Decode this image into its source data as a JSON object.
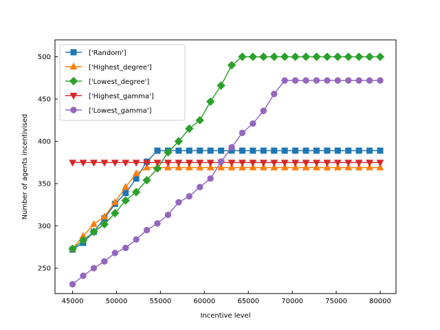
{
  "chart_data": {
    "type": "line",
    "xlabel": "Incentive level",
    "ylabel": "Number of agents incentivised",
    "xlim": [
      43000,
      81800
    ],
    "ylim": [
      220,
      520
    ],
    "xticks": [
      45000,
      50000,
      55000,
      60000,
      65000,
      70000,
      75000,
      80000
    ],
    "yticks": [
      250,
      300,
      350,
      400,
      450,
      500
    ],
    "grid": false,
    "legend_position": "top-left",
    "x": [
      45000,
      46207,
      47414,
      48621,
      49828,
      51034,
      52241,
      53448,
      54655,
      55862,
      57069,
      58276,
      59483,
      60690,
      61897,
      63103,
      64310,
      65517,
      66724,
      67931,
      69138,
      70345,
      71552,
      72759,
      73966,
      75172,
      76379,
      77586,
      78793,
      80000
    ],
    "series": [
      {
        "name": "['Random']",
        "color": "#1f77b4",
        "marker": "square",
        "values": [
          272,
          280,
          293,
          309,
          326,
          339,
          356,
          376,
          389,
          389,
          389,
          389,
          389,
          389,
          389,
          389,
          389,
          389,
          389,
          389,
          389,
          389,
          389,
          389,
          389,
          389,
          389,
          389,
          389,
          389
        ]
      },
      {
        "name": "['Highest_degree']",
        "color": "#ff7f0e",
        "marker": "triangle-up",
        "values": [
          273,
          288,
          302,
          311,
          328,
          346,
          362,
          369,
          369,
          369,
          369,
          369,
          369,
          369,
          369,
          369,
          369,
          369,
          369,
          369,
          369,
          369,
          369,
          369,
          369,
          369,
          369,
          369,
          369,
          369
        ]
      },
      {
        "name": "['Lowest_degree']",
        "color": "#2ca02c",
        "marker": "diamond",
        "values": [
          273,
          283,
          293,
          302,
          315,
          330,
          340,
          354,
          368,
          387,
          400,
          415,
          425,
          447,
          466,
          490,
          500,
          500,
          500,
          500,
          500,
          500,
          500,
          500,
          500,
          500,
          500,
          500,
          500,
          500
        ]
      },
      {
        "name": "['Highest_gamma']",
        "color": "#d62728",
        "marker": "triangle-down",
        "values": [
          375,
          375,
          375,
          375,
          375,
          375,
          375,
          375,
          375,
          375,
          375,
          375,
          375,
          375,
          375,
          375,
          375,
          375,
          375,
          375,
          375,
          375,
          375,
          375,
          375,
          375,
          375,
          375,
          375,
          375
        ]
      },
      {
        "name": "['Lowest_gamma']",
        "color": "#9467bd",
        "marker": "circle",
        "values": [
          231,
          241,
          250,
          258,
          268,
          274,
          284,
          295,
          303,
          313,
          328,
          335,
          346,
          356,
          376,
          393,
          410,
          421,
          436,
          456,
          472,
          472,
          472,
          472,
          472,
          472,
          472,
          472,
          472,
          472
        ]
      }
    ]
  }
}
